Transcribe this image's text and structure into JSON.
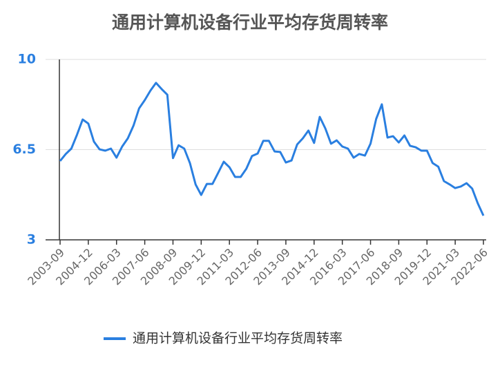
{
  "chart_data": {
    "type": "line",
    "title": "通用计算机设备行业平均存货周转率",
    "categories": [
      "2003-09",
      null,
      null,
      null,
      null,
      "2004-12",
      null,
      null,
      null,
      null,
      "2006-03",
      null,
      null,
      null,
      null,
      "2007-06",
      null,
      null,
      null,
      null,
      "2008-09",
      null,
      null,
      null,
      null,
      "2009-12",
      null,
      null,
      null,
      null,
      "2011-03",
      null,
      null,
      null,
      null,
      "2012-06",
      null,
      null,
      null,
      null,
      "2013-09",
      null,
      null,
      null,
      null,
      "2014-12",
      null,
      null,
      null,
      null,
      "2016-03",
      null,
      null,
      null,
      null,
      "2017-06",
      null,
      null,
      null,
      null,
      "2018-09",
      null,
      null,
      null,
      null,
      "2019-12",
      null,
      null,
      null,
      null,
      "2021-03",
      null,
      null,
      null,
      null,
      "2022-06"
    ],
    "series": [
      {
        "name": "通用计算机设备行业平均存货周转率",
        "color": "#2a7fe0",
        "values": [
          6.06,
          6.33,
          6.54,
          7.08,
          7.67,
          7.51,
          6.81,
          6.51,
          6.46,
          6.54,
          6.19,
          6.62,
          6.94,
          7.43,
          8.1,
          8.42,
          8.79,
          9.09,
          8.85,
          8.63,
          6.17,
          6.67,
          6.54,
          5.98,
          5.15,
          4.74,
          5.17,
          5.17,
          5.6,
          6.03,
          5.82,
          5.44,
          5.44,
          5.76,
          6.25,
          6.35,
          6.84,
          6.84,
          6.43,
          6.41,
          6.0,
          6.08,
          6.7,
          6.94,
          7.24,
          6.76,
          7.77,
          7.32,
          6.73,
          6.86,
          6.62,
          6.54,
          6.19,
          6.33,
          6.27,
          6.73,
          7.69,
          8.26,
          6.97,
          7.02,
          6.78,
          7.05,
          6.65,
          6.59,
          6.46,
          6.46,
          5.98,
          5.84,
          5.28,
          5.15,
          5.01,
          5.07,
          5.2,
          4.99,
          4.42,
          3.94
        ]
      }
    ],
    "ylim": [
      3,
      10
    ],
    "yticks": [
      3,
      6.5,
      10
    ],
    "grid": true,
    "legend": "bottom"
  }
}
